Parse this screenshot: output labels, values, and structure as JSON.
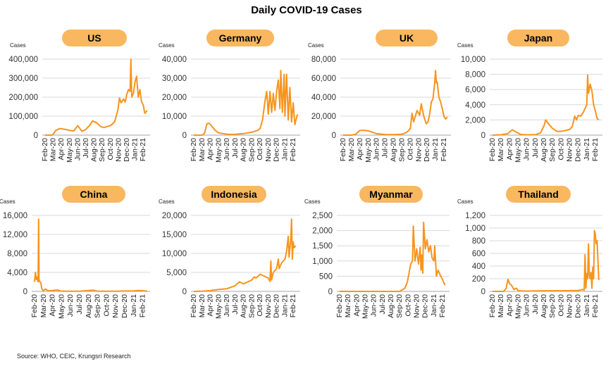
{
  "title": "Daily COVID-19 Cases",
  "source": "Source: WHO, CEIC, Krungsri Research",
  "colors": {
    "line": "#F7941D",
    "badge": "#F9B760",
    "grid": "#d9d9d9",
    "axis": "#a6a6a6"
  },
  "chart_data": [
    {
      "type": "line",
      "title": "US",
      "ylabel": "Cases",
      "ylim": [
        0,
        400000
      ],
      "yticks": [
        0,
        100000,
        200000,
        300000,
        400000
      ],
      "ytick_labels": [
        "0",
        "100,000",
        "200,000",
        "300,000",
        "400,000"
      ],
      "categories": [
        "Feb-20",
        "Mar-20",
        "Apr-20",
        "May-20",
        "Jun-20",
        "Jul-20",
        "Aug-20",
        "Sep-20",
        "Oct-20",
        "Nov-20",
        "Dec-20",
        "Jan-21",
        "Feb-21"
      ],
      "x": [
        0,
        0.8,
        1.0,
        1.3,
        1.8,
        2.5,
        3.0,
        3.5,
        4.0,
        4.5,
        5.0,
        5.5,
        5.8,
        6.3,
        6.8,
        7.2,
        7.6,
        8.0,
        8.5,
        8.9,
        9.1,
        9.3,
        9.6,
        9.8,
        10.0,
        10.2,
        10.4,
        10.5,
        10.6,
        10.8,
        11.0,
        11.2,
        11.4,
        11.6,
        11.8,
        12.0,
        12.2,
        12.5
      ],
      "series": [
        {
          "name": "US",
          "values": [
            0,
            0,
            5000,
            25000,
            35000,
            30000,
            25000,
            22000,
            50000,
            20000,
            30000,
            55000,
            75000,
            65000,
            45000,
            40000,
            45000,
            50000,
            70000,
            130000,
            195000,
            170000,
            190000,
            175000,
            215000,
            240000,
            230000,
            400000,
            200000,
            220000,
            280000,
            310000,
            200000,
            240000,
            175000,
            160000,
            115000,
            130000
          ]
        }
      ]
    },
    {
      "type": "line",
      "title": "Germany",
      "ylabel": "Cases",
      "ylim": [
        0,
        40000
      ],
      "yticks": [
        0,
        10000,
        20000,
        30000,
        40000
      ],
      "ytick_labels": [
        "0",
        "10,000",
        "20,000",
        "30,000",
        "40,000"
      ],
      "categories": [
        "Feb-20",
        "Mar-20",
        "Apr-20",
        "May-20",
        "Jun-20",
        "Jul-20",
        "Aug-20",
        "Sep-20",
        "Oct-20",
        "Nov-20",
        "Dec-20",
        "Jan-21",
        "Feb-21"
      ],
      "x": [
        0,
        1.0,
        1.3,
        1.6,
        1.9,
        2.2,
        2.6,
        3.0,
        4.0,
        5.0,
        6.0,
        7.0,
        7.7,
        8.0,
        8.3,
        8.6,
        8.8,
        9.0,
        9.2,
        9.4,
        9.6,
        9.8,
        10.0,
        10.2,
        10.4,
        10.5,
        10.7,
        10.9,
        11.0,
        11.2,
        11.4,
        11.6,
        11.8,
        12.0,
        12.2,
        12.5
      ],
      "series": [
        {
          "name": "Germany",
          "values": [
            0,
            0,
            1000,
            6000,
            6200,
            4500,
            2500,
            1200,
            500,
            400,
            800,
            1500,
            2500,
            3500,
            8000,
            18000,
            23000,
            11000,
            23000,
            12000,
            22000,
            13000,
            23000,
            29000,
            14000,
            34000,
            12000,
            32000,
            10000,
            32000,
            8000,
            25000,
            7000,
            17000,
            5500,
            11000
          ]
        }
      ]
    },
    {
      "type": "line",
      "title": "UK",
      "ylabel": "Cases",
      "ylim": [
        0,
        80000
      ],
      "yticks": [
        0,
        20000,
        40000,
        60000,
        80000
      ],
      "ytick_labels": [
        "0",
        "20,000",
        "40,000",
        "60,000",
        "80,000"
      ],
      "categories": [
        "Feb-20",
        "Mar-20",
        "Apr-20",
        "May-20",
        "Jun-20",
        "Jul-20",
        "Aug-20",
        "Sep-20",
        "Oct-20",
        "Nov-20",
        "Dec-20",
        "Jan-21",
        "Feb-21"
      ],
      "x": [
        0,
        1.0,
        1.5,
        2.0,
        2.5,
        3.0,
        3.5,
        4.0,
        5.0,
        6.0,
        7.0,
        7.5,
        7.8,
        8.0,
        8.2,
        8.4,
        8.8,
        9.1,
        9.3,
        9.6,
        9.9,
        10.1,
        10.3,
        10.5,
        10.7,
        10.9,
        11.0,
        11.1,
        11.2,
        11.4,
        11.6,
        11.8,
        12.0,
        12.2,
        12.4
      ],
      "series": [
        {
          "name": "UK",
          "values": [
            0,
            0,
            1000,
            5000,
            5000,
            4500,
            3000,
            1500,
            700,
            600,
            1000,
            2500,
            5000,
            7000,
            23000,
            14000,
            26000,
            21000,
            33000,
            20000,
            12000,
            14000,
            22000,
            35000,
            38000,
            55000,
            68000,
            55000,
            56000,
            40000,
            35000,
            28000,
            20000,
            17000,
            19000
          ]
        }
      ]
    },
    {
      "type": "line",
      "title": "Japan",
      "ylabel": "Cases",
      "ylim": [
        0,
        10000
      ],
      "yticks": [
        0,
        2000,
        4000,
        6000,
        8000,
        10000
      ],
      "ytick_labels": [
        "0",
        "2,000",
        "4,000",
        "6,000",
        "8,000",
        "10,000"
      ],
      "categories": [
        "Feb-20",
        "Mar-20",
        "Apr-20",
        "May-20",
        "Jun-20",
        "Jul-20",
        "Aug-20",
        "Sep-20",
        "Oct-20",
        "Nov-20",
        "Dec-20",
        "Jan-21",
        "Feb-21"
      ],
      "x": [
        0,
        1.0,
        1.8,
        2.3,
        2.8,
        3.3,
        4.0,
        5.0,
        5.6,
        6.0,
        6.2,
        6.6,
        7.0,
        7.5,
        8.0,
        8.5,
        9.0,
        9.3,
        9.6,
        9.8,
        10.0,
        10.3,
        10.6,
        10.8,
        11.0,
        11.1,
        11.2,
        11.4,
        11.6,
        11.8,
        12.0,
        12.2,
        12.4
      ],
      "series": [
        {
          "name": "Japan",
          "values": [
            0,
            50,
            200,
            700,
            400,
            80,
            50,
            60,
            300,
            1200,
            2000,
            1400,
            900,
            500,
            500,
            600,
            750,
            1100,
            2500,
            2000,
            2600,
            2500,
            3000,
            3500,
            4000,
            7900,
            5500,
            6700,
            5800,
            4000,
            3200,
            2200,
            2000
          ]
        }
      ]
    },
    {
      "type": "line",
      "title": "China",
      "ylabel": "Cases",
      "ylim": [
        0,
        16000
      ],
      "yticks": [
        0,
        4000,
        8000,
        12000,
        16000
      ],
      "ytick_labels": [
        "0",
        "4,000",
        "8,000",
        "12,000",
        "16,000"
      ],
      "categories": [
        "Feb-20",
        "Mar-20",
        "Apr-20",
        "May-20",
        "Jun-20",
        "Jul-20",
        "Aug-20",
        "Sep-20",
        "Oct-20",
        "Nov-20",
        "Dec-20",
        "Jan-21",
        "Feb-21"
      ],
      "x": [
        0,
        0.1,
        0.2,
        0.3,
        0.4,
        0.45,
        0.5,
        0.6,
        0.7,
        0.8,
        0.9,
        1.0,
        1.2,
        1.5,
        2.0,
        2.5,
        3.0,
        5.0,
        6.0,
        6.5,
        7.0,
        9.0,
        10.0,
        11.0,
        11.5,
        12.0,
        12.5
      ],
      "series": [
        {
          "name": "China",
          "values": [
            2000,
            4000,
            2500,
            3000,
            2000,
            15200,
            2500,
            2000,
            1800,
            600,
            300,
            200,
            500,
            100,
            200,
            300,
            50,
            30,
            200,
            250,
            40,
            30,
            80,
            100,
            200,
            150,
            50
          ]
        }
      ]
    },
    {
      "type": "line",
      "title": "Indonesia",
      "ylabel": "Cases",
      "ylim": [
        0,
        20000
      ],
      "yticks": [
        0,
        5000,
        10000,
        15000,
        20000
      ],
      "ytick_labels": [
        "0",
        "5,000",
        "10,000",
        "15,000",
        "20,000"
      ],
      "categories": [
        "Feb-20",
        "Mar-20",
        "Apr-20",
        "May-20",
        "Jun-20",
        "Jul-20",
        "Aug-20",
        "Sep-20",
        "Oct-20",
        "Nov-20",
        "Dec-20",
        "Jan-21",
        "Feb-21"
      ],
      "x": [
        0,
        1.0,
        2.0,
        3.0,
        4.0,
        5.0,
        5.5,
        6.0,
        6.5,
        7.0,
        7.3,
        7.5,
        8.0,
        8.5,
        9.0,
        9.2,
        9.3,
        9.4,
        9.6,
        10.0,
        10.2,
        10.3,
        10.6,
        11.0,
        11.2,
        11.4,
        11.5,
        11.7,
        11.8,
        11.9,
        12.0,
        12.1,
        12.3
      ],
      "series": [
        {
          "name": "Indonesia",
          "values": [
            0,
            50,
            200,
            500,
            700,
            1500,
            2500,
            2000,
            2500,
            3000,
            3800,
            3500,
            4500,
            4000,
            3500,
            2600,
            8000,
            3000,
            5000,
            6000,
            8500,
            6000,
            7500,
            8500,
            10500,
            14500,
            9000,
            13500,
            19000,
            8500,
            13000,
            11500,
            12000
          ]
        }
      ]
    },
    {
      "type": "line",
      "title": "Myanmar",
      "ylabel": "Cases",
      "ylim": [
        0,
        2500
      ],
      "yticks": [
        0,
        500,
        1000,
        1500,
        2000,
        2500
      ],
      "ytick_labels": [
        "0",
        "500",
        "1,000",
        "1,500",
        "2,000",
        "2,500"
      ],
      "categories": [
        "Feb-20",
        "Mar-20",
        "Apr-20",
        "May-20",
        "Jun-20",
        "Jul-20",
        "Aug-20",
        "Sep-20",
        "Oct-20",
        "Nov-20",
        "Dec-20",
        "Jan-21",
        "Feb-21"
      ],
      "x": [
        0,
        3.0,
        6.0,
        7.0,
        7.3,
        7.6,
        7.9,
        8.1,
        8.3,
        8.5,
        8.6,
        8.8,
        9.0,
        9.2,
        9.4,
        9.5,
        9.6,
        9.7,
        9.8,
        10.0,
        10.2,
        10.4,
        10.6,
        10.8,
        11.0,
        11.1,
        11.3,
        11.5,
        11.8,
        12.0,
        12.3
      ],
      "series": [
        {
          "name": "Myanmar",
          "values": [
            0,
            0,
            0,
            0,
            50,
            100,
            300,
            600,
            900,
            1000,
            2150,
            1000,
            1400,
            900,
            1450,
            700,
            1200,
            600,
            2270,
            1400,
            1700,
            1300,
            1500,
            1100,
            1000,
            1500,
            500,
            700,
            500,
            400,
            200
          ]
        }
      ]
    },
    {
      "type": "line",
      "title": "Thailand",
      "ylabel": "Cases",
      "ylim": [
        0,
        1200
      ],
      "yticks": [
        0,
        200,
        400,
        600,
        800,
        1000,
        1200
      ],
      "ytick_labels": [
        "0",
        "200",
        "400",
        "600",
        "800",
        "1,000",
        "1,200"
      ],
      "categories": [
        "Feb-20",
        "Mar-20",
        "Apr-20",
        "May-20",
        "Jun-20",
        "Jul-20",
        "Aug-20",
        "Sep-20",
        "Oct-20",
        "Nov-20",
        "Dec-20",
        "Jan-21",
        "Feb-21"
      ],
      "x": [
        0,
        1.3,
        1.6,
        1.8,
        2.0,
        2.2,
        2.5,
        2.8,
        3.0,
        4.0,
        6.0,
        8.0,
        10.0,
        10.5,
        10.7,
        10.8,
        10.9,
        11.0,
        11.1,
        11.2,
        11.3,
        11.4,
        11.5,
        11.6,
        11.7,
        11.8,
        11.9,
        12.0,
        12.1,
        12.2,
        12.4
      ],
      "series": [
        {
          "name": "Thailand",
          "values": [
            0,
            0,
            50,
            190,
            120,
            100,
            30,
            50,
            10,
            5,
            10,
            10,
            15,
            30,
            20,
            580,
            50,
            280,
            200,
            750,
            250,
            200,
            300,
            50,
            380,
            200,
            960,
            900,
            750,
            800,
            180
          ]
        }
      ]
    }
  ]
}
